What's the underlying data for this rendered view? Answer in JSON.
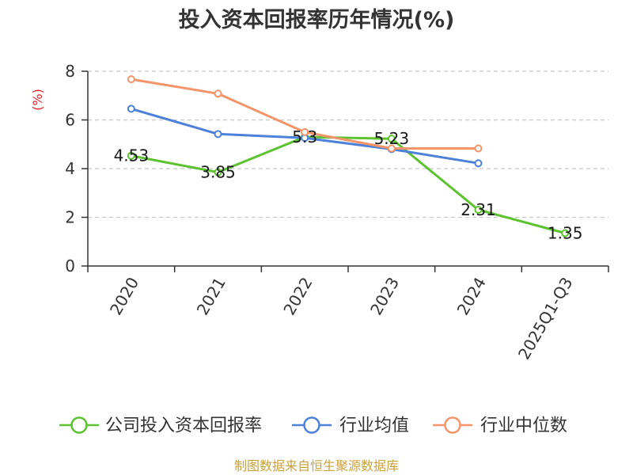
{
  "chart_data": {
    "type": "line",
    "title": "投入资本回报率历年情况(%)",
    "ylabel": "(%)",
    "categories": [
      "2020",
      "2021",
      "2022",
      "2023",
      "2024",
      "2025Q1-Q3"
    ],
    "ylim": [
      0,
      8
    ],
    "yticks": [
      0,
      2,
      4,
      6,
      8
    ],
    "grid": true,
    "legend_position": "bottom",
    "series": [
      {
        "name": "公司投入资本回报率",
        "color": "#5dc22f",
        "show_labels": true,
        "values": [
          4.53,
          3.85,
          5.3,
          5.23,
          2.31,
          1.35
        ]
      },
      {
        "name": "行业均值",
        "color": "#4c80d9",
        "show_labels": false,
        "values": [
          6.46,
          5.42,
          5.26,
          4.8,
          4.22,
          null
        ]
      },
      {
        "name": "行业中位数",
        "color": "#f4946b",
        "show_labels": false,
        "values": [
          7.67,
          7.08,
          5.5,
          4.83,
          4.83,
          null
        ]
      }
    ]
  },
  "footer": {
    "source": "制图数据来自恒生聚源数据库"
  }
}
